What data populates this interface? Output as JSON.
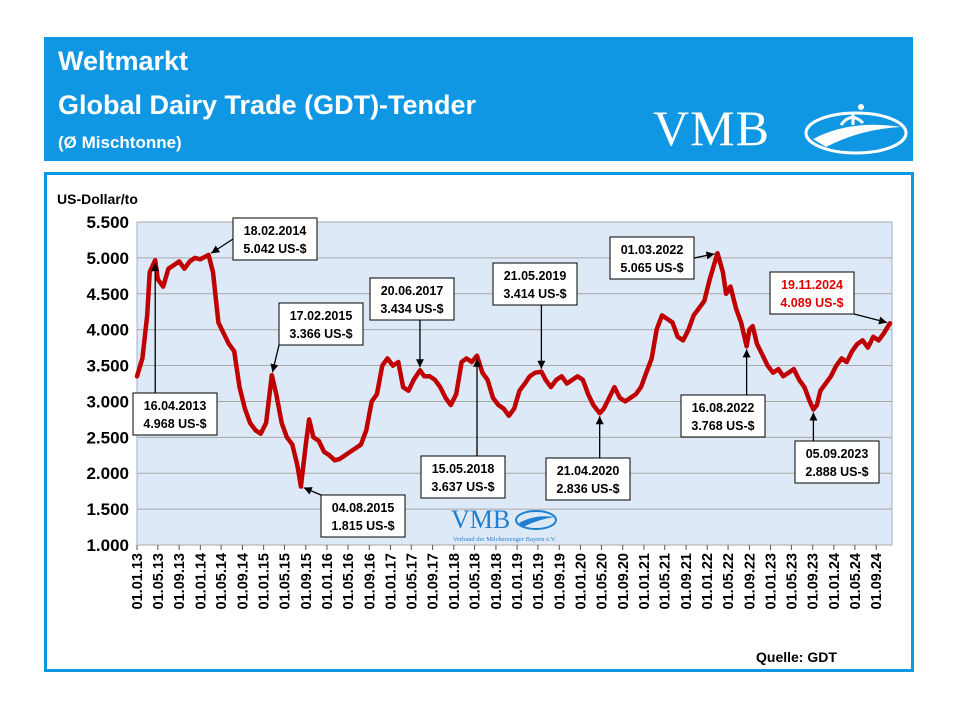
{
  "header": {
    "line1": "Weltmarkt",
    "line2": "Global Dairy Trade (GDT)-Tender",
    "line3": "(Ø Mischtonne)",
    "logo_text": "VMB"
  },
  "watermark": {
    "logo_text": "VMB",
    "subtitle": "Verband der Milcherzeuger Bayern e.V."
  },
  "colors": {
    "banner": "#0f97e3",
    "line": "#c00000",
    "plot_bg": "#dde9f7",
    "highlight": "#e00000"
  },
  "chart_data": {
    "type": "line",
    "title": "",
    "ylabel": "US-Dollar/to",
    "source": "Quelle: GDT",
    "ylim": [
      1000,
      5500
    ],
    "yticks": [
      1000,
      1500,
      2000,
      2500,
      3000,
      3500,
      4000,
      4500,
      5000,
      5500
    ],
    "ytick_labels": [
      "1.000",
      "1.500",
      "2.000",
      "2.500",
      "3.000",
      "3.500",
      "4.000",
      "4.500",
      "5.000",
      "5.500"
    ],
    "xlim": [
      "2013-01-01",
      "2024-12-01"
    ],
    "xtick_labels": [
      "01.01.13",
      "01.05.13",
      "01.09.13",
      "01.01.14",
      "01.05.14",
      "01.09.14",
      "01.01.15",
      "01.05.15",
      "01.09.15",
      "01.01.16",
      "01.05.16",
      "01.09.16",
      "01.01.17",
      "01.05.17",
      "01.09.17",
      "01.01.18",
      "01.05.18",
      "01.09.18",
      "01.01.19",
      "01.05.19",
      "01.09.19",
      "01.01.20",
      "01.05.20",
      "01.09.20",
      "01.01.21",
      "01.05.21",
      "01.09.21",
      "01.01.22",
      "01.05.22",
      "01.09.22",
      "01.01.23",
      "01.05.23",
      "01.09.23",
      "01.01.24",
      "01.05.24",
      "01.09.24"
    ],
    "grid": true,
    "series": [
      {
        "points": [
          [
            "2013-01-01",
            3350
          ],
          [
            "2013-02-01",
            3600
          ],
          [
            "2013-03-01",
            4200
          ],
          [
            "2013-03-15",
            4800
          ],
          [
            "2013-04-16",
            4968
          ],
          [
            "2013-05-01",
            4700
          ],
          [
            "2013-06-01",
            4600
          ],
          [
            "2013-07-01",
            4850
          ],
          [
            "2013-08-01",
            4900
          ],
          [
            "2013-09-01",
            4950
          ],
          [
            "2013-10-01",
            4850
          ],
          [
            "2013-11-01",
            4950
          ],
          [
            "2013-12-01",
            5000
          ],
          [
            "2014-01-01",
            4980
          ],
          [
            "2014-02-18",
            5042
          ],
          [
            "2014-03-15",
            4800
          ],
          [
            "2014-04-15",
            4100
          ],
          [
            "2014-05-15",
            3950
          ],
          [
            "2014-06-15",
            3800
          ],
          [
            "2014-07-15",
            3700
          ],
          [
            "2014-08-15",
            3200
          ],
          [
            "2014-09-15",
            2900
          ],
          [
            "2014-10-15",
            2700
          ],
          [
            "2014-11-15",
            2600
          ],
          [
            "2014-12-15",
            2550
          ],
          [
            "2015-01-15",
            2700
          ],
          [
            "2015-02-17",
            3366
          ],
          [
            "2015-03-15",
            3100
          ],
          [
            "2015-04-15",
            2700
          ],
          [
            "2015-05-15",
            2500
          ],
          [
            "2015-06-15",
            2400
          ],
          [
            "2015-07-15",
            2100
          ],
          [
            "2015-08-04",
            1815
          ],
          [
            "2015-09-01",
            2400
          ],
          [
            "2015-09-20",
            2750
          ],
          [
            "2015-10-15",
            2500
          ],
          [
            "2015-11-15",
            2450
          ],
          [
            "2015-12-15",
            2300
          ],
          [
            "2016-01-15",
            2250
          ],
          [
            "2016-02-15",
            2180
          ],
          [
            "2016-03-15",
            2200
          ],
          [
            "2016-04-15",
            2250
          ],
          [
            "2016-05-15",
            2300
          ],
          [
            "2016-06-15",
            2350
          ],
          [
            "2016-07-15",
            2400
          ],
          [
            "2016-08-15",
            2600
          ],
          [
            "2016-09-15",
            3000
          ],
          [
            "2016-10-15",
            3100
          ],
          [
            "2016-11-15",
            3500
          ],
          [
            "2016-12-15",
            3600
          ],
          [
            "2017-01-15",
            3500
          ],
          [
            "2017-02-15",
            3550
          ],
          [
            "2017-03-15",
            3200
          ],
          [
            "2017-04-15",
            3150
          ],
          [
            "2017-05-15",
            3300
          ],
          [
            "2017-06-20",
            3434
          ],
          [
            "2017-07-15",
            3350
          ],
          [
            "2017-08-15",
            3350
          ],
          [
            "2017-09-15",
            3300
          ],
          [
            "2017-10-15",
            3200
          ],
          [
            "2017-11-15",
            3050
          ],
          [
            "2017-12-15",
            2950
          ],
          [
            "2018-01-15",
            3100
          ],
          [
            "2018-02-15",
            3550
          ],
          [
            "2018-03-15",
            3600
          ],
          [
            "2018-04-15",
            3550
          ],
          [
            "2018-05-15",
            3637
          ],
          [
            "2018-06-15",
            3400
          ],
          [
            "2018-07-15",
            3300
          ],
          [
            "2018-08-15",
            3050
          ],
          [
            "2018-09-15",
            2950
          ],
          [
            "2018-10-15",
            2900
          ],
          [
            "2018-11-15",
            2800
          ],
          [
            "2018-12-15",
            2900
          ],
          [
            "2019-01-15",
            3150
          ],
          [
            "2019-02-15",
            3250
          ],
          [
            "2019-03-15",
            3350
          ],
          [
            "2019-04-15",
            3400
          ],
          [
            "2019-05-21",
            3414
          ],
          [
            "2019-06-15",
            3300
          ],
          [
            "2019-07-15",
            3200
          ],
          [
            "2019-08-15",
            3300
          ],
          [
            "2019-09-15",
            3350
          ],
          [
            "2019-10-15",
            3250
          ],
          [
            "2019-11-15",
            3300
          ],
          [
            "2019-12-15",
            3350
          ],
          [
            "2020-01-15",
            3300
          ],
          [
            "2020-02-15",
            3100
          ],
          [
            "2020-03-15",
            2950
          ],
          [
            "2020-04-21",
            2836
          ],
          [
            "2020-05-15",
            2900
          ],
          [
            "2020-06-15",
            3050
          ],
          [
            "2020-07-15",
            3200
          ],
          [
            "2020-08-15",
            3050
          ],
          [
            "2020-09-15",
            3000
          ],
          [
            "2020-10-15",
            3050
          ],
          [
            "2020-11-15",
            3100
          ],
          [
            "2020-12-15",
            3200
          ],
          [
            "2021-01-15",
            3400
          ],
          [
            "2021-02-15",
            3600
          ],
          [
            "2021-03-15",
            4000
          ],
          [
            "2021-04-15",
            4200
          ],
          [
            "2021-05-15",
            4150
          ],
          [
            "2021-06-15",
            4100
          ],
          [
            "2021-07-15",
            3900
          ],
          [
            "2021-08-15",
            3850
          ],
          [
            "2021-09-15",
            4000
          ],
          [
            "2021-10-15",
            4200
          ],
          [
            "2021-11-15",
            4300
          ],
          [
            "2021-12-15",
            4400
          ],
          [
            "2022-01-15",
            4700
          ],
          [
            "2022-03-01",
            5065
          ],
          [
            "2022-04-01",
            4800
          ],
          [
            "2022-04-20",
            4500
          ],
          [
            "2022-05-15",
            4600
          ],
          [
            "2022-06-15",
            4300
          ],
          [
            "2022-07-15",
            4100
          ],
          [
            "2022-08-16",
            3768
          ],
          [
            "2022-09-01",
            4000
          ],
          [
            "2022-09-20",
            4050
          ],
          [
            "2022-10-15",
            3800
          ],
          [
            "2022-11-15",
            3650
          ],
          [
            "2022-12-15",
            3500
          ],
          [
            "2023-01-15",
            3400
          ],
          [
            "2023-02-15",
            3450
          ],
          [
            "2023-03-15",
            3350
          ],
          [
            "2023-04-15",
            3400
          ],
          [
            "2023-05-15",
            3450
          ],
          [
            "2023-06-15",
            3300
          ],
          [
            "2023-07-15",
            3200
          ],
          [
            "2023-08-15",
            3000
          ],
          [
            "2023-09-05",
            2888
          ],
          [
            "2023-09-25",
            2950
          ],
          [
            "2023-10-15",
            3150
          ],
          [
            "2023-11-15",
            3250
          ],
          [
            "2023-12-15",
            3350
          ],
          [
            "2024-01-15",
            3500
          ],
          [
            "2024-02-15",
            3600
          ],
          [
            "2024-03-15",
            3550
          ],
          [
            "2024-04-15",
            3700
          ],
          [
            "2024-05-15",
            3800
          ],
          [
            "2024-06-15",
            3850
          ],
          [
            "2024-07-15",
            3750
          ],
          [
            "2024-08-15",
            3900
          ],
          [
            "2024-09-15",
            3850
          ],
          [
            "2024-10-15",
            3950
          ],
          [
            "2024-11-19",
            4089
          ]
        ]
      }
    ],
    "annotations": [
      {
        "date": "2013-04-16",
        "label": "16.04.2013",
        "value_text": "4.968 US-$",
        "highlight": false
      },
      {
        "date": "2014-02-18",
        "label": "18.02.2014",
        "value_text": "5.042 US-$",
        "highlight": false
      },
      {
        "date": "2015-02-17",
        "label": "17.02.2015",
        "value_text": "3.366 US-$",
        "highlight": false
      },
      {
        "date": "2015-08-04",
        "label": "04.08.2015",
        "value_text": "1.815 US-$",
        "highlight": false
      },
      {
        "date": "2017-06-20",
        "label": "20.06.2017",
        "value_text": "3.434 US-$",
        "highlight": false
      },
      {
        "date": "2018-05-15",
        "label": "15.05.2018",
        "value_text": "3.637 US-$",
        "highlight": false
      },
      {
        "date": "2019-05-21",
        "label": "21.05.2019",
        "value_text": "3.414 US-$",
        "highlight": false
      },
      {
        "date": "2020-04-21",
        "label": "21.04.2020",
        "value_text": "2.836 US-$",
        "highlight": false
      },
      {
        "date": "2022-03-01",
        "label": "01.03.2022",
        "value_text": "5.065 US-$",
        "highlight": false
      },
      {
        "date": "2022-08-16",
        "label": "16.08.2022",
        "value_text": "3.768 US-$",
        "highlight": false
      },
      {
        "date": "2023-09-05",
        "label": "05.09.2023",
        "value_text": "2.888 US-$",
        "highlight": false
      },
      {
        "date": "2024-11-19",
        "label": "19.11.2024",
        "value_text": "4.089 US-$",
        "highlight": true
      }
    ]
  }
}
